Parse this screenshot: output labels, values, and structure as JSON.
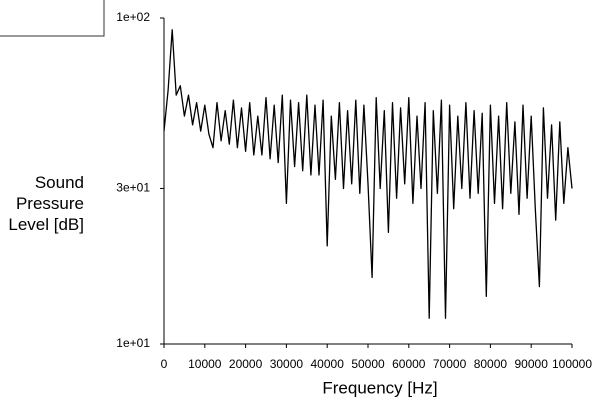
{
  "chart_data": {
    "type": "line",
    "x_label": "Frequency [Hz]",
    "y_label": "Sound Pressure Level [dB]",
    "x": [
      0,
      1000,
      2000,
      3000,
      4000,
      5000,
      6000,
      7000,
      8000,
      9000,
      10000,
      11000,
      12000,
      13000,
      14000,
      15000,
      16000,
      17000,
      18000,
      19000,
      20000,
      21000,
      22000,
      23000,
      24000,
      25000,
      26000,
      27000,
      28000,
      29000,
      30000,
      31000,
      32000,
      33000,
      34000,
      35000,
      36000,
      37000,
      38000,
      39000,
      40000,
      41000,
      42000,
      43000,
      44000,
      45000,
      46000,
      47000,
      48000,
      49000,
      50000,
      51000,
      52000,
      53000,
      54000,
      55000,
      56000,
      57000,
      58000,
      59000,
      60000,
      61000,
      62000,
      63000,
      64000,
      65000,
      66000,
      67000,
      68000,
      69000,
      70000,
      71000,
      72000,
      73000,
      74000,
      75000,
      76000,
      77000,
      78000,
      79000,
      80000,
      81000,
      82000,
      83000,
      84000,
      85000,
      86000,
      87000,
      88000,
      89000,
      90000,
      91000,
      92000,
      93000,
      94000,
      95000,
      96000,
      97000,
      98000,
      99000,
      100000
    ],
    "values": [
      45,
      60,
      92,
      58,
      62,
      50,
      58,
      47,
      55,
      45,
      54,
      44,
      40,
      55,
      42,
      52,
      41,
      56,
      40,
      53,
      39,
      55,
      38,
      50,
      38,
      57,
      37,
      54,
      36,
      58,
      27,
      56,
      35,
      55,
      34,
      58,
      33,
      54,
      33,
      56,
      20,
      50,
      32,
      55,
      30,
      52,
      31,
      56,
      29,
      54,
      31,
      16,
      57,
      30,
      52,
      22,
      55,
      28,
      53,
      31,
      57,
      27,
      50,
      30,
      55,
      12,
      52,
      29,
      56,
      12,
      54,
      26,
      50,
      30,
      55,
      28,
      52,
      29,
      51,
      14,
      54,
      27,
      50,
      26,
      55,
      29,
      48,
      25,
      54,
      28,
      50,
      26,
      15,
      53,
      28,
      47,
      24,
      48,
      27,
      40,
      30
    ],
    "color": "#000000",
    "log_y": true,
    "xlim": [
      0,
      100000
    ],
    "ylim": [
      10,
      100
    ],
    "xticks": [
      0,
      10000,
      20000,
      30000,
      40000,
      50000,
      60000,
      70000,
      80000,
      90000,
      100000
    ],
    "yticks": [
      {
        "value": 10,
        "label": "1e+01"
      },
      {
        "value": 30,
        "label": "3e+01"
      },
      {
        "value": 100,
        "label": "1e+02"
      }
    ]
  }
}
